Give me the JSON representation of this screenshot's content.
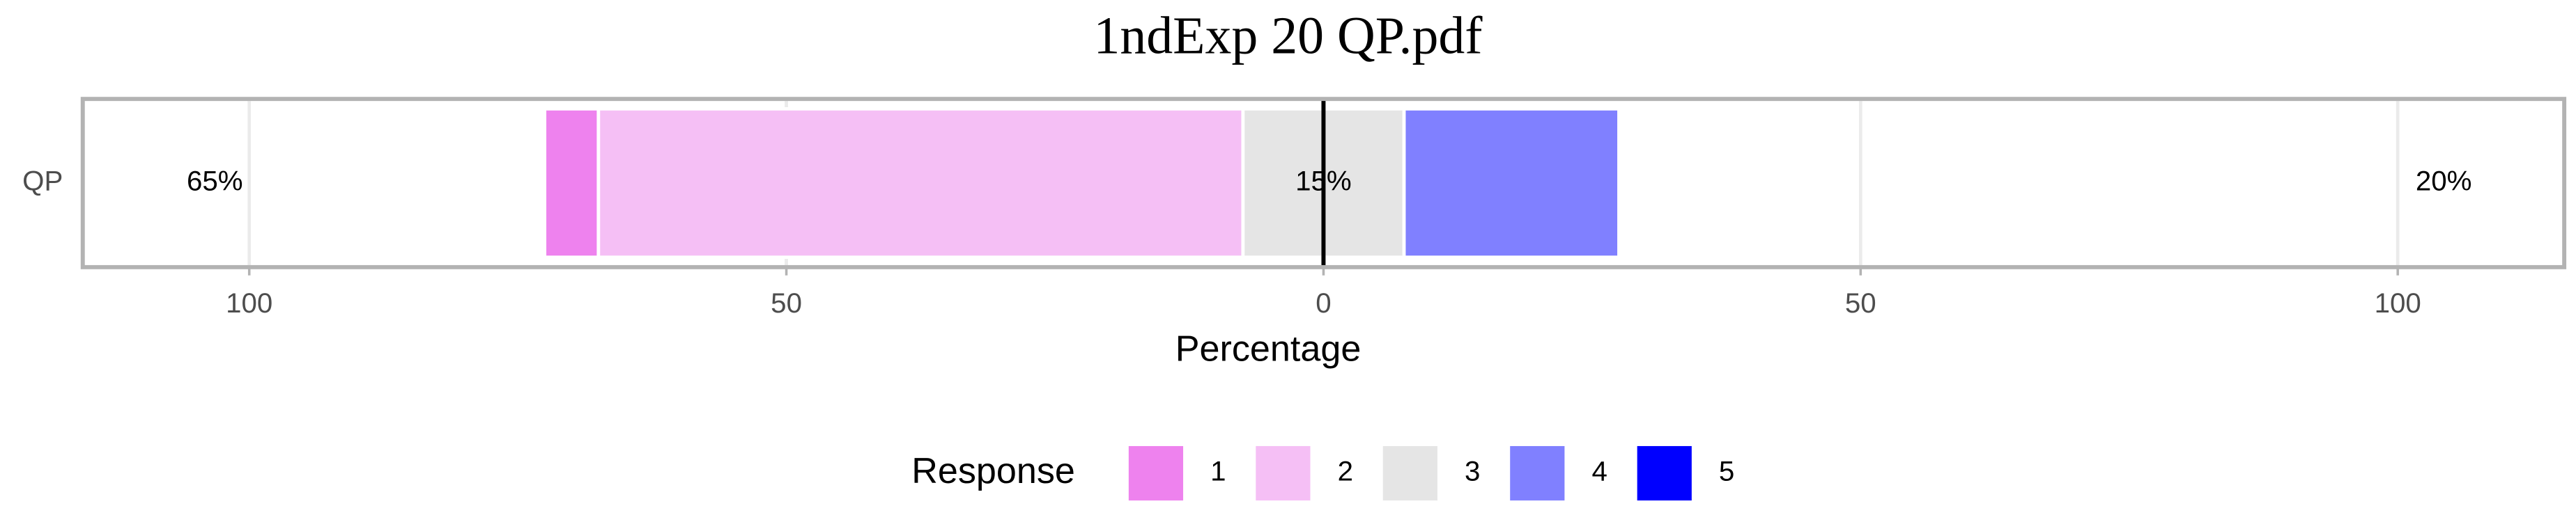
{
  "chart_data": {
    "type": "diverging-bar",
    "title": "1ndExp 20 QP.pdf",
    "categories": [
      "QP"
    ],
    "series": [
      {
        "name": "1",
        "color": "#EE82EE",
        "values": [
          5
        ]
      },
      {
        "name": "2",
        "color": "#F5BFF5",
        "values": [
          60
        ]
      },
      {
        "name": "3",
        "color": "#E5E5E5",
        "values": [
          15
        ]
      },
      {
        "name": "4",
        "color": "#8080FF",
        "values": [
          20
        ]
      },
      {
        "name": "5",
        "color": "#0000FF",
        "values": [
          0
        ]
      }
    ],
    "low_labels": [
      {
        "value": 65,
        "label": "65%"
      }
    ],
    "neutral_labels": [
      {
        "value": 15,
        "label": "15%"
      }
    ],
    "high_labels": [
      {
        "value": 20,
        "label": "20%"
      }
    ],
    "xlabel": "Percentage",
    "legend_title": "Response",
    "xlim": [
      -115.5,
      115.5
    ],
    "xticks": [
      {
        "value": -100,
        "label": "100"
      },
      {
        "value": -50,
        "label": "50"
      },
      0,
      50,
      100
    ],
    "grid": true,
    "legend": "bottom"
  }
}
